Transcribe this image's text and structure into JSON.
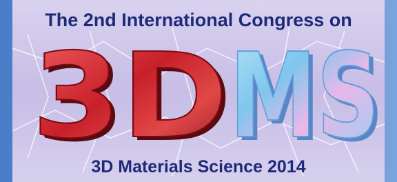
{
  "header": {
    "title": "The 2nd International Congress on"
  },
  "logo": {
    "part1": "3D",
    "part2": "MS"
  },
  "footer": {
    "subtitle": "3D Materials Science 2014"
  }
}
